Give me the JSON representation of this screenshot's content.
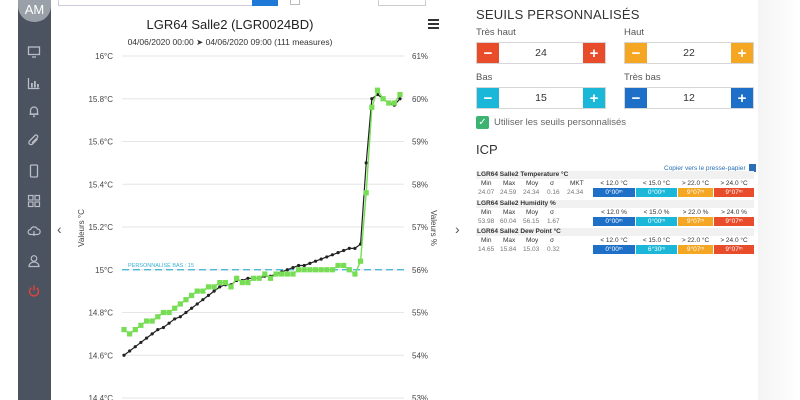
{
  "user": {
    "initials": "AM"
  },
  "sidebar": {
    "icons": [
      "monitor-icon",
      "bar-chart-icon",
      "bell-icon",
      "paperclip-icon",
      "mobile-icon",
      "grid-icon",
      "cloud-upload-icon",
      "user-icon",
      "power-icon"
    ]
  },
  "chart": {
    "title": "LGR64 Salle2 (LGR0024BD)",
    "subtitle": "04/06/2020 00:00 ➤ 04/06/2020 09:00 (111 measures)",
    "left_axis_label": "Valeurs °C",
    "right_axis_label": "Valeurs %",
    "threshold_label": "PERSONNALISÉ BAS : 15",
    "colors": {
      "temperature": "#222222",
      "humidity": "#77dd55",
      "threshold": "#3ab0d0"
    }
  },
  "chart_data": {
    "type": "line",
    "y_left": {
      "label": "Valeurs °C",
      "ticks": [
        "14.4°C",
        "14.6°C",
        "14.8°C",
        "15°C",
        "15.2°C",
        "15.4°C",
        "15.6°C",
        "15.8°C",
        "16°C"
      ],
      "range": [
        14.4,
        16.0
      ]
    },
    "y_right": {
      "label": "Valeurs %",
      "ticks": [
        "53%",
        "54%",
        "55%",
        "56%",
        "57%",
        "58%",
        "59%",
        "60%",
        "61%"
      ],
      "range": [
        53,
        61
      ]
    },
    "threshold": {
      "label": "PERSONNALISÉ BAS : 15",
      "value": 15.0
    },
    "series": [
      {
        "axis": "left",
        "values": [
          14.6,
          14.62,
          14.64,
          14.66,
          14.68,
          14.7,
          14.72,
          14.73,
          14.75,
          14.77,
          14.78,
          14.8,
          14.82,
          14.84,
          14.86,
          14.88,
          14.9,
          14.92,
          14.93,
          14.93,
          14.95,
          14.95,
          14.96,
          14.96,
          14.96,
          14.97,
          14.97,
          14.98,
          14.99,
          15.0,
          15.01,
          15.02,
          15.02,
          15.03,
          15.04,
          15.05,
          15.06,
          15.07,
          15.08,
          15.09,
          15.1,
          15.1,
          15.12,
          15.5,
          15.8,
          15.82,
          15.8,
          15.78,
          15.77,
          15.8
        ]
      },
      {
        "axis": "right",
        "values": [
          54.6,
          54.5,
          54.6,
          54.7,
          54.8,
          54.8,
          54.9,
          55.0,
          55.0,
          55.1,
          55.2,
          55.3,
          55.4,
          55.5,
          55.5,
          55.6,
          55.6,
          55.7,
          55.7,
          55.6,
          55.8,
          55.7,
          55.7,
          55.8,
          55.8,
          55.9,
          55.8,
          55.9,
          55.9,
          55.9,
          55.9,
          56.0,
          56.0,
          56.0,
          56.0,
          56.0,
          56.0,
          56.0,
          56.1,
          56.1,
          56.0,
          55.9,
          56.2,
          57.8,
          59.8,
          60.2,
          60.0,
          59.9,
          59.9,
          60.1
        ]
      }
    ]
  },
  "thresholds": {
    "title": "SEUILS PERSONNALISÉS",
    "very_high": {
      "label": "Très haut",
      "value": "24",
      "color": "#e84c2a"
    },
    "high": {
      "label": "Haut",
      "value": "22",
      "color": "#f5a623"
    },
    "low": {
      "label": "Bas",
      "value": "15",
      "color": "#1ab7d8"
    },
    "very_low": {
      "label": "Très bas",
      "value": "12",
      "color": "#1e6fc7"
    },
    "use_custom": "Utiliser les seuils personnalisés"
  },
  "icp": {
    "title": "ICP",
    "copy_label": "Copier vers le presse-papier",
    "blocks": [
      {
        "name": "LGR64 Salle2 Temperature °C",
        "headers": [
          "Min",
          "Max",
          "Moy",
          "σ",
          "MKT"
        ],
        "values": [
          "24.07",
          "24.59",
          "24.34",
          "0.16",
          "24.34"
        ],
        "range_headers": [
          "< 12.0 °C",
          "< 15.0 °C",
          "> 22.0 °C",
          "> 24.0 °C"
        ],
        "range_values": [
          "0°00ᵐ",
          "0°00ᵐ",
          "9°07ᵐ",
          "9°07ᵐ"
        ]
      },
      {
        "name": "LGR64 Salle2 Humidity %",
        "headers": [
          "Min",
          "Max",
          "Moy",
          "σ"
        ],
        "values": [
          "53.98",
          "60.04",
          "56.15",
          "1.67"
        ],
        "range_headers": [
          "< 12.0 %",
          "< 15.0 %",
          "> 22.0 %",
          "> 24.0 %"
        ],
        "range_values": [
          "0°00ᵐ",
          "0°00ᵐ",
          "9°07ᵐ",
          "9°07ᵐ"
        ]
      },
      {
        "name": "LGR64 Salle2 Dew Point °C",
        "headers": [
          "Min",
          "Max",
          "Moy",
          "σ"
        ],
        "values": [
          "14.65",
          "15.84",
          "15.03",
          "0.32"
        ],
        "range_headers": [
          "< 12.0 °C",
          "< 15.0 °C",
          "> 22.0 °C",
          "> 24.0 °C"
        ],
        "range_values": [
          "0°00ᵐ",
          "6°30ᵐ",
          "9°07ᵐ",
          "9°07ᵐ"
        ]
      }
    ],
    "range_colors": [
      "#1e6fc7",
      "#1ab7d8",
      "#f5a623",
      "#e84c2a"
    ]
  }
}
